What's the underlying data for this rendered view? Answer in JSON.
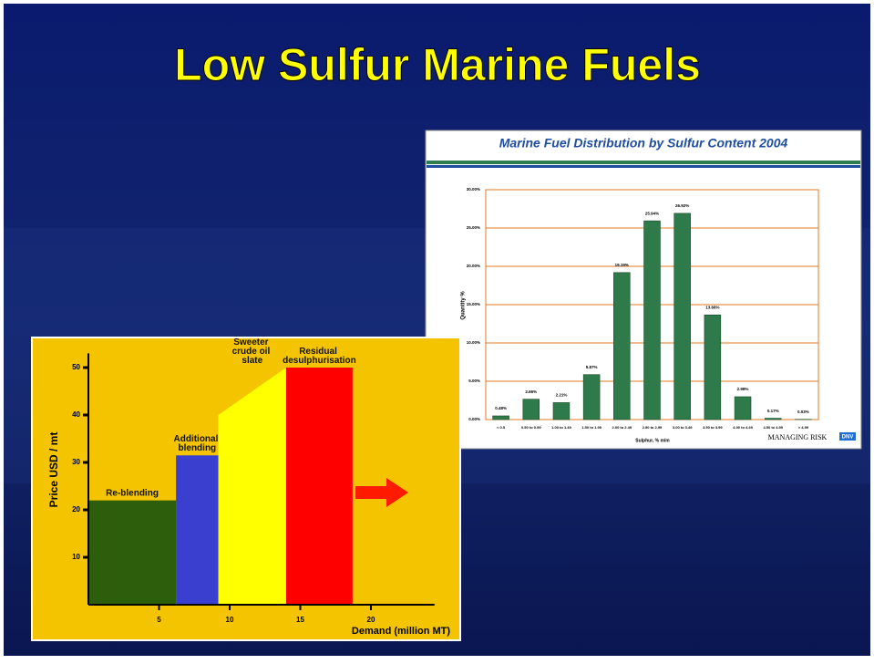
{
  "slide_title": "Low Sulfur Marine Fuels",
  "chart_data": [
    {
      "type": "bar",
      "title": "Marine Fuel Distribution by Sulfur Content  2004",
      "y_label": "Quantity %",
      "x_label": "Sulphur, % m/m",
      "categories": [
        "< 0.5",
        "0.50 to 0.99",
        "1.00 to 1.49",
        "1.50 to 1.99",
        "2.00 to 2.49",
        "2.50 to 2.99",
        "3.00 to 3.49",
        "3.50 to 3.99",
        "4.00 to 4.49",
        "4.50 to 4.99",
        "> 4.99"
      ],
      "values": [
        0.48,
        2.66,
        2.21,
        5.87,
        19.19,
        25.94,
        26.92,
        13.66,
        2.98,
        0.17,
        0.03
      ],
      "value_labels": [
        "0.48%",
        "2.66%",
        "2.21%",
        "5.87%",
        "19.19%",
        "25.94%",
        "26.92%",
        "13.66%",
        "2.98%",
        "0.17%",
        "0.03%"
      ],
      "color": "#2f7a4a",
      "grid": true,
      "ylim": [
        0,
        30
      ],
      "yticks": [
        {
          "value": 0,
          "label": "0.00%"
        },
        {
          "value": 5,
          "label": "5.00%"
        },
        {
          "value": 10,
          "label": "10.00%"
        },
        {
          "value": 15,
          "label": "15.00%"
        },
        {
          "value": 20,
          "label": "20.00%"
        },
        {
          "value": 25,
          "label": "25.00%"
        },
        {
          "value": 30,
          "label": "30.00%"
        }
      ],
      "footer": "MANAGING RISK",
      "logo": "DNV"
    },
    {
      "type": "area",
      "y_label": "Price USD / mt",
      "x_label": "Demand (million MT)",
      "xlim": [
        0,
        24.5
      ],
      "ylim": [
        0,
        53
      ],
      "xticks": [
        5,
        10,
        15,
        20
      ],
      "yticks": [
        10,
        20,
        30,
        40,
        50
      ],
      "series": [
        {
          "name": "Re-blending",
          "color": "#2d5e0c",
          "x": [
            0,
            6.2
          ],
          "values": [
            22,
            22
          ]
        },
        {
          "name": "Additional blending",
          "color": "#3b3fd0",
          "x": [
            6.2,
            9.2
          ],
          "values": [
            31.5,
            31.5
          ]
        },
        {
          "name": "Sweeter crude oil slate",
          "color": "#ffff00",
          "x": [
            9.2,
            14
          ],
          "values": [
            40,
            50
          ]
        },
        {
          "name": "Residual desulphurisation",
          "color": "#ff0000",
          "x": [
            14,
            18.7
          ],
          "values": [
            50,
            50
          ]
        }
      ]
    }
  ]
}
